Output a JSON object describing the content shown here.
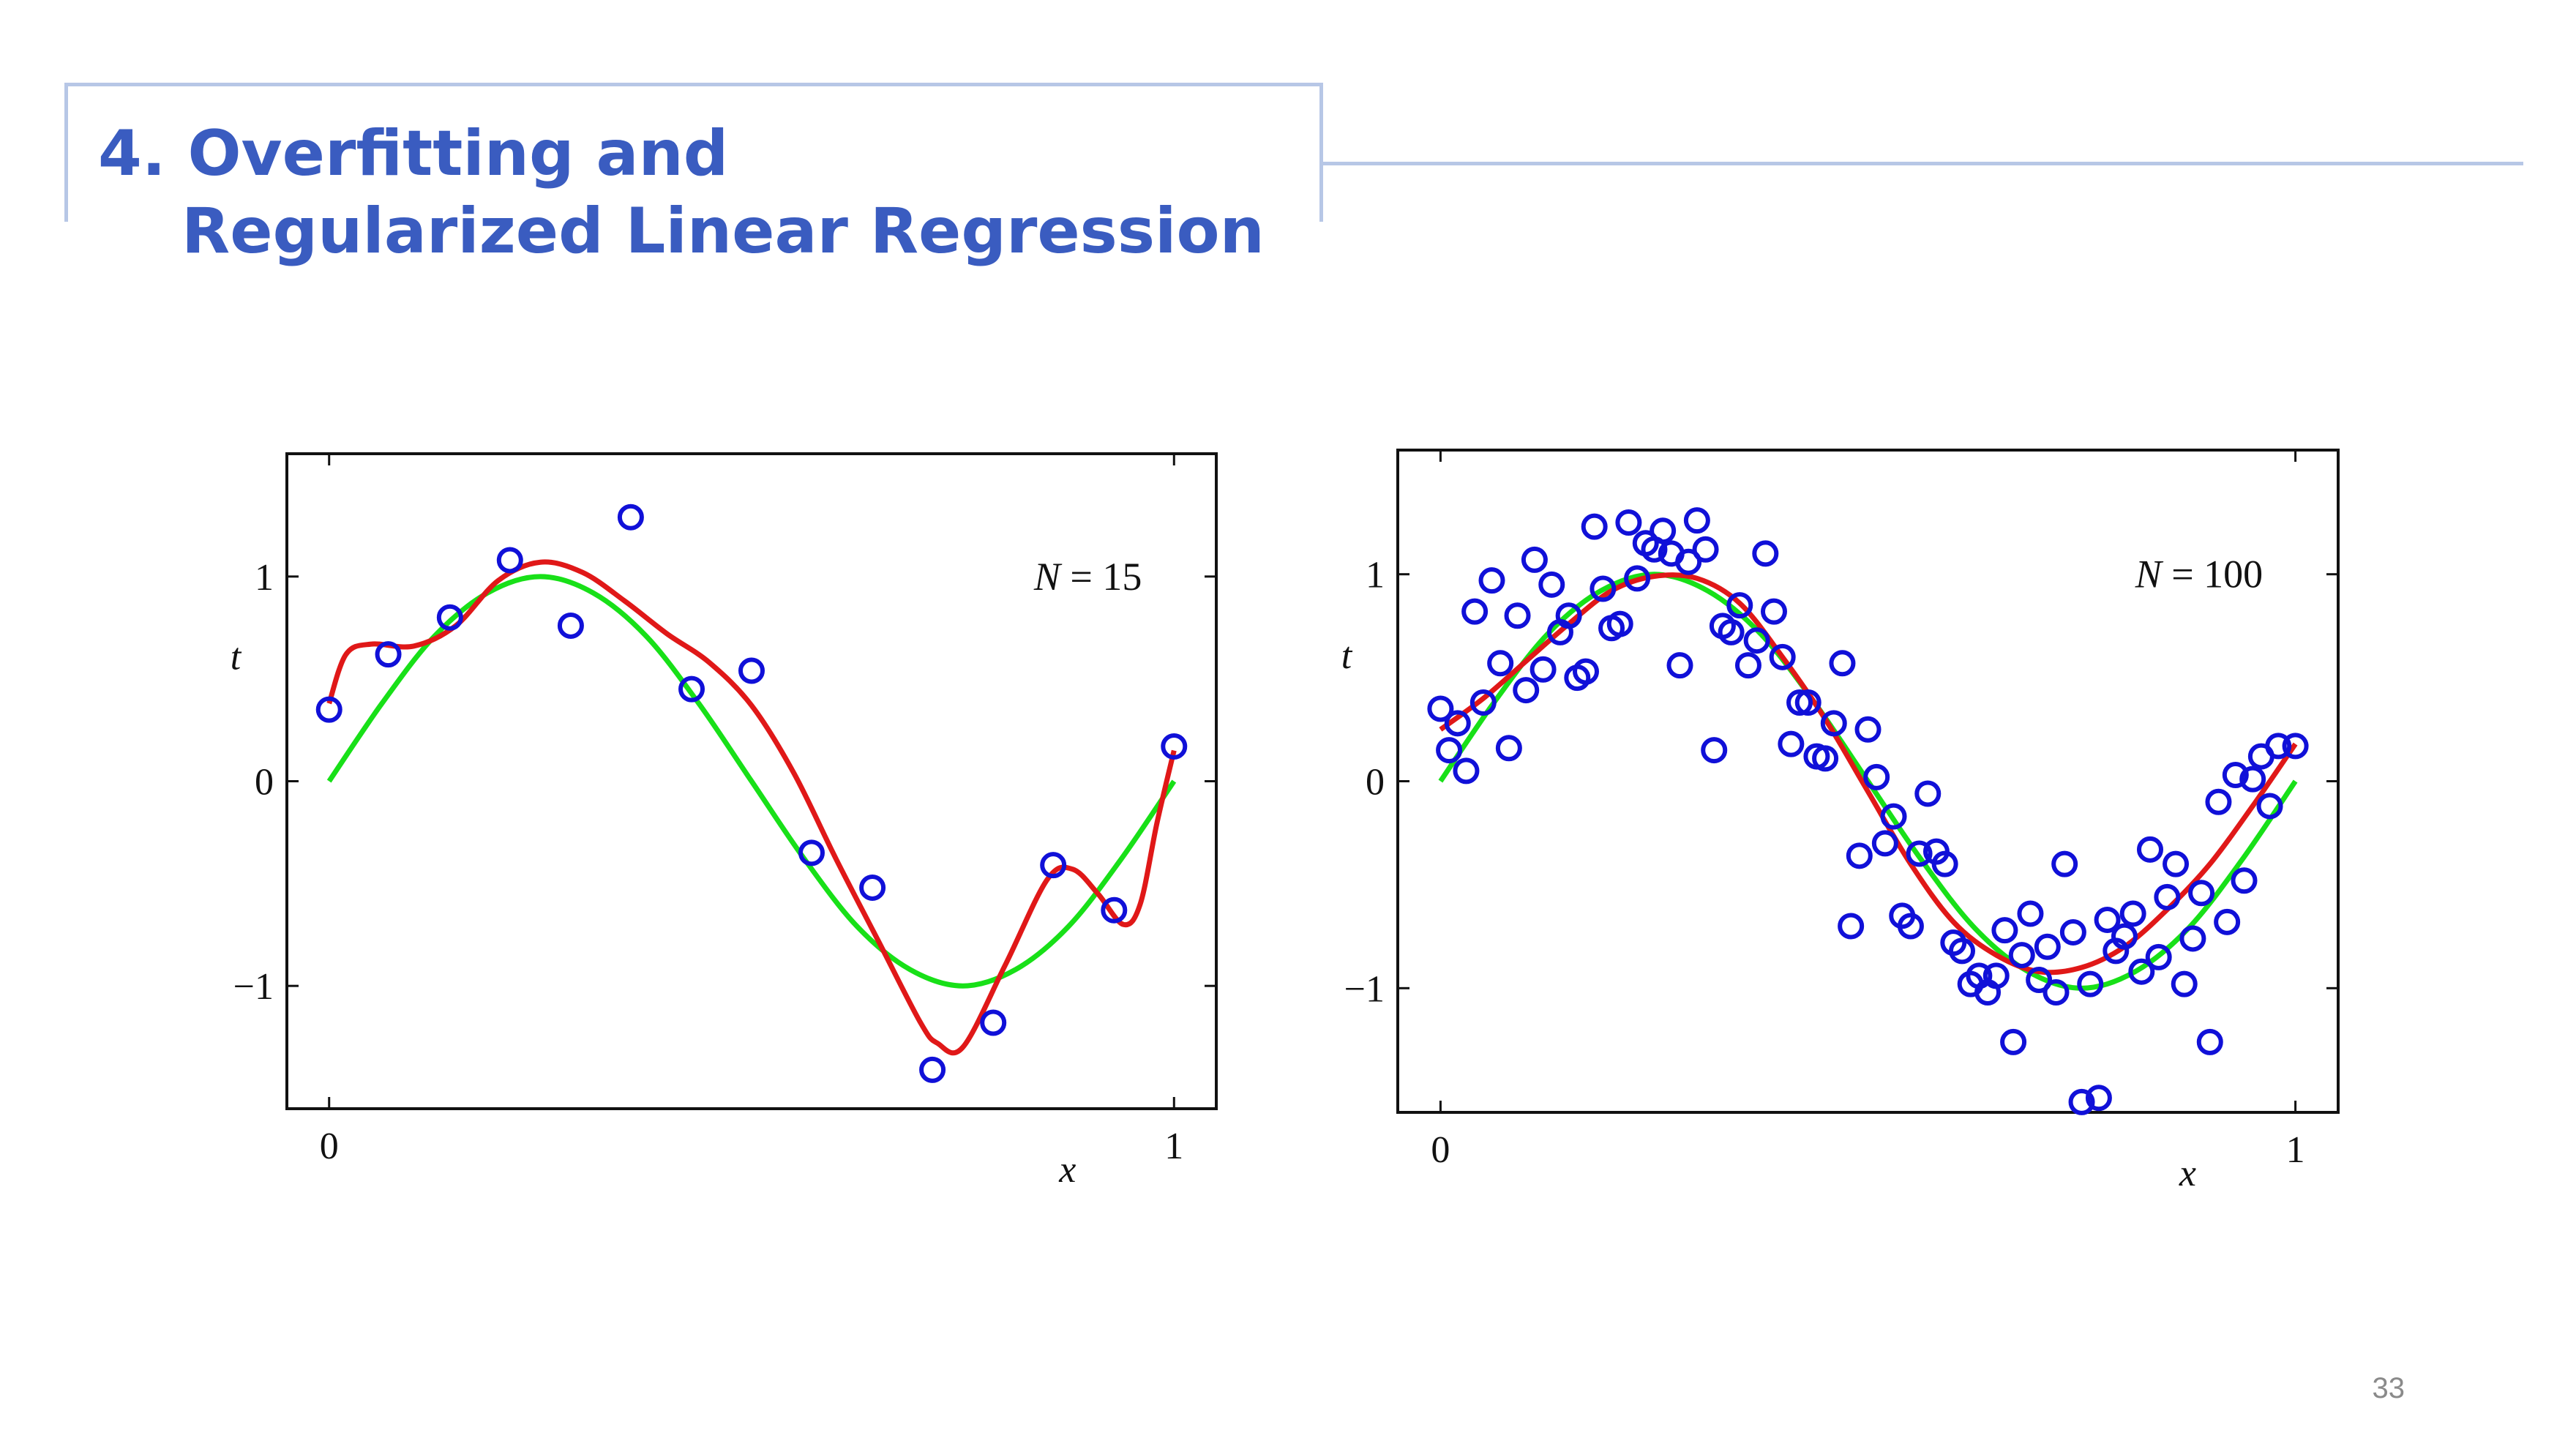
{
  "slide": {
    "title_line1": "4. Overfitting and",
    "title_line2": "Regularized Linear Regression",
    "page_number": "33"
  },
  "colors": {
    "title": "#3a5cc0",
    "frame": "#b7c7e6",
    "points": "#1010d8",
    "fit": "#e01818",
    "true_curve": "#18e018"
  },
  "chart_data": [
    {
      "type": "scatter",
      "annotation": "N = 15",
      "xlabel": "x",
      "ylabel": "t",
      "xlim": [
        -0.05,
        1.05
      ],
      "ylim": [
        -1.6,
        1.6
      ],
      "x_ticks": [
        0,
        1
      ],
      "y_ticks": [
        -1,
        0,
        1
      ],
      "series": [
        {
          "kind": "points",
          "x": [
            0.0,
            0.07,
            0.143,
            0.214,
            0.286,
            0.357,
            0.429,
            0.5,
            0.571,
            0.643,
            0.714,
            0.786,
            0.857,
            0.929,
            1.0
          ],
          "y": [
            0.35,
            0.62,
            0.8,
            1.08,
            0.76,
            1.29,
            0.45,
            0.54,
            -0.35,
            -0.52,
            -1.41,
            -1.18,
            -0.41,
            -0.63,
            0.17
          ]
        },
        {
          "kind": "true_curve",
          "x": [
            0,
            0.0625,
            0.125,
            0.1875,
            0.25,
            0.3125,
            0.375,
            0.4375,
            0.5,
            0.5625,
            0.625,
            0.6875,
            0.75,
            0.8125,
            0.875,
            0.9375,
            1.0
          ],
          "y": [
            0,
            0.38,
            0.71,
            0.92,
            1.0,
            0.92,
            0.71,
            0.38,
            0.0,
            -0.38,
            -0.71,
            -0.92,
            -1.0,
            -0.92,
            -0.71,
            -0.38,
            0.0
          ]
        },
        {
          "kind": "fitted_curve",
          "x": [
            0,
            0.02,
            0.05,
            0.1,
            0.15,
            0.2,
            0.25,
            0.3,
            0.35,
            0.4,
            0.45,
            0.5,
            0.55,
            0.6,
            0.65,
            0.7,
            0.72,
            0.75,
            0.8,
            0.85,
            0.88,
            0.91,
            0.94,
            0.96,
            0.98,
            1.0
          ],
          "y": [
            0.38,
            0.62,
            0.67,
            0.66,
            0.76,
            0.98,
            1.07,
            1.02,
            0.88,
            0.72,
            0.58,
            0.37,
            0.04,
            -0.38,
            -0.78,
            -1.18,
            -1.28,
            -1.3,
            -0.9,
            -0.48,
            -0.43,
            -0.55,
            -0.7,
            -0.6,
            -0.2,
            0.15
          ]
        }
      ]
    },
    {
      "type": "scatter",
      "annotation": "N = 100",
      "xlabel": "x",
      "ylabel": "t",
      "xlim": [
        -0.05,
        1.05
      ],
      "ylim": [
        -1.6,
        1.6
      ],
      "x_ticks": [
        0,
        1
      ],
      "y_ticks": [
        -1,
        0,
        1
      ],
      "series": [
        {
          "kind": "points",
          "x": [
            0.0,
            0.01,
            0.02,
            0.03,
            0.04,
            0.05,
            0.06,
            0.07,
            0.08,
            0.09,
            0.1,
            0.11,
            0.12,
            0.13,
            0.14,
            0.15,
            0.16,
            0.17,
            0.18,
            0.19,
            0.2,
            0.21,
            0.22,
            0.23,
            0.24,
            0.25,
            0.26,
            0.27,
            0.28,
            0.29,
            0.3,
            0.31,
            0.32,
            0.33,
            0.34,
            0.35,
            0.36,
            0.37,
            0.38,
            0.39,
            0.4,
            0.41,
            0.42,
            0.43,
            0.44,
            0.45,
            0.46,
            0.47,
            0.48,
            0.49,
            0.5,
            0.51,
            0.52,
            0.53,
            0.54,
            0.55,
            0.56,
            0.57,
            0.58,
            0.59,
            0.6,
            0.61,
            0.62,
            0.63,
            0.64,
            0.65,
            0.66,
            0.67,
            0.68,
            0.69,
            0.7,
            0.71,
            0.72,
            0.73,
            0.74,
            0.75,
            0.76,
            0.77,
            0.78,
            0.79,
            0.8,
            0.81,
            0.82,
            0.83,
            0.84,
            0.85,
            0.86,
            0.87,
            0.88,
            0.89,
            0.9,
            0.91,
            0.92,
            0.93,
            0.94,
            0.95,
            0.96,
            0.97,
            0.98,
            1.0
          ],
          "y": [
            0.35,
            0.15,
            0.28,
            0.05,
            0.82,
            0.38,
            0.97,
            0.57,
            0.16,
            0.8,
            0.44,
            1.07,
            0.54,
            0.95,
            0.72,
            0.8,
            0.5,
            0.53,
            1.23,
            0.93,
            0.74,
            0.76,
            1.25,
            0.98,
            1.15,
            1.12,
            1.21,
            1.1,
            0.56,
            1.06,
            1.26,
            1.12,
            0.15,
            0.75,
            0.72,
            0.85,
            0.56,
            0.68,
            1.1,
            0.82,
            0.6,
            0.18,
            0.38,
            0.38,
            0.12,
            0.11,
            0.28,
            0.57,
            -0.7,
            -0.36,
            0.25,
            0.02,
            -0.3,
            -0.17,
            -0.65,
            -0.7,
            -0.35,
            -0.06,
            -0.34,
            -0.4,
            -0.78,
            -0.82,
            -0.98,
            -0.94,
            -1.02,
            -0.94,
            -0.72,
            -1.26,
            -0.84,
            -0.64,
            -0.96,
            -0.8,
            -1.02,
            -0.4,
            -0.73,
            -1.55,
            -0.98,
            -1.53,
            -0.67,
            -0.82,
            -0.75,
            -0.64,
            -0.92,
            -0.33,
            -0.85,
            -0.56,
            -0.4,
            -0.98,
            -0.76,
            -0.54,
            -1.26,
            -0.1,
            -0.68,
            0.03,
            -0.48,
            0.01,
            0.12,
            -0.12,
            0.17,
            0.17
          ]
        },
        {
          "kind": "true_curve",
          "x": [
            0,
            0.0625,
            0.125,
            0.1875,
            0.25,
            0.3125,
            0.375,
            0.4375,
            0.5,
            0.5625,
            0.625,
            0.6875,
            0.75,
            0.8125,
            0.875,
            0.9375,
            1.0
          ],
          "y": [
            0,
            0.38,
            0.71,
            0.92,
            1.0,
            0.92,
            0.71,
            0.38,
            0.0,
            -0.38,
            -0.71,
            -0.92,
            -1.0,
            -0.92,
            -0.71,
            -0.38,
            0.0
          ]
        },
        {
          "kind": "fitted_curve",
          "x": [
            0,
            0.05,
            0.1,
            0.15,
            0.2,
            0.25,
            0.3,
            0.35,
            0.4,
            0.45,
            0.5,
            0.55,
            0.6,
            0.65,
            0.7,
            0.75,
            0.8,
            0.85,
            0.9,
            0.95,
            1.0
          ],
          "y": [
            0.25,
            0.4,
            0.58,
            0.76,
            0.92,
            0.99,
            0.98,
            0.86,
            0.6,
            0.3,
            -0.05,
            -0.4,
            -0.68,
            -0.84,
            -0.92,
            -0.9,
            -0.8,
            -0.62,
            -0.4,
            -0.12,
            0.18
          ]
        }
      ]
    }
  ]
}
